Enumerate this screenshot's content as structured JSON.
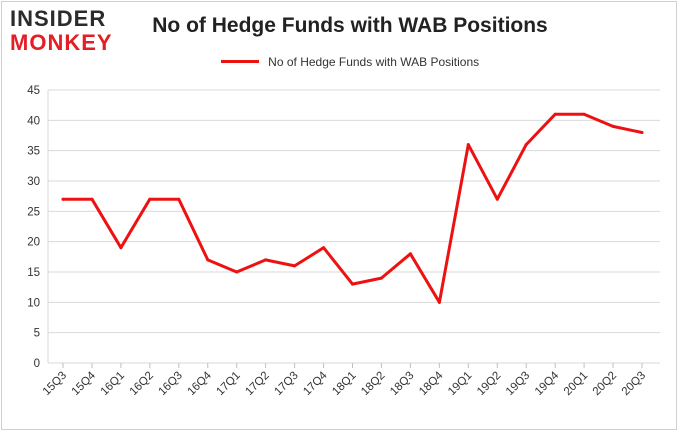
{
  "brand": {
    "line1": "INSIDER",
    "line2": "MONKEY"
  },
  "chart_data": {
    "type": "line",
    "title": "No of Hedge Funds with WAB Positions",
    "xlabel": "",
    "ylabel": "",
    "legend": "top-center",
    "grid": true,
    "ylim": [
      0,
      45
    ],
    "yticks": [
      0,
      5,
      10,
      15,
      20,
      25,
      30,
      35,
      40,
      45
    ],
    "categories": [
      "15Q3",
      "15Q4",
      "16Q1",
      "16Q2",
      "16Q3",
      "16Q4",
      "17Q1",
      "17Q2",
      "17Q3",
      "17Q4",
      "18Q1",
      "18Q2",
      "18Q3",
      "18Q4",
      "19Q1",
      "19Q2",
      "19Q3",
      "19Q4",
      "20Q1",
      "20Q2",
      "20Q3"
    ],
    "series": [
      {
        "name": "No of Hedge Funds with WAB Positions",
        "color": "#ee1111",
        "values": [
          27,
          27,
          19,
          27,
          27,
          17,
          15,
          17,
          16,
          19,
          13,
          14,
          18,
          10,
          36,
          27,
          36,
          41,
          41,
          39,
          38
        ]
      }
    ]
  }
}
